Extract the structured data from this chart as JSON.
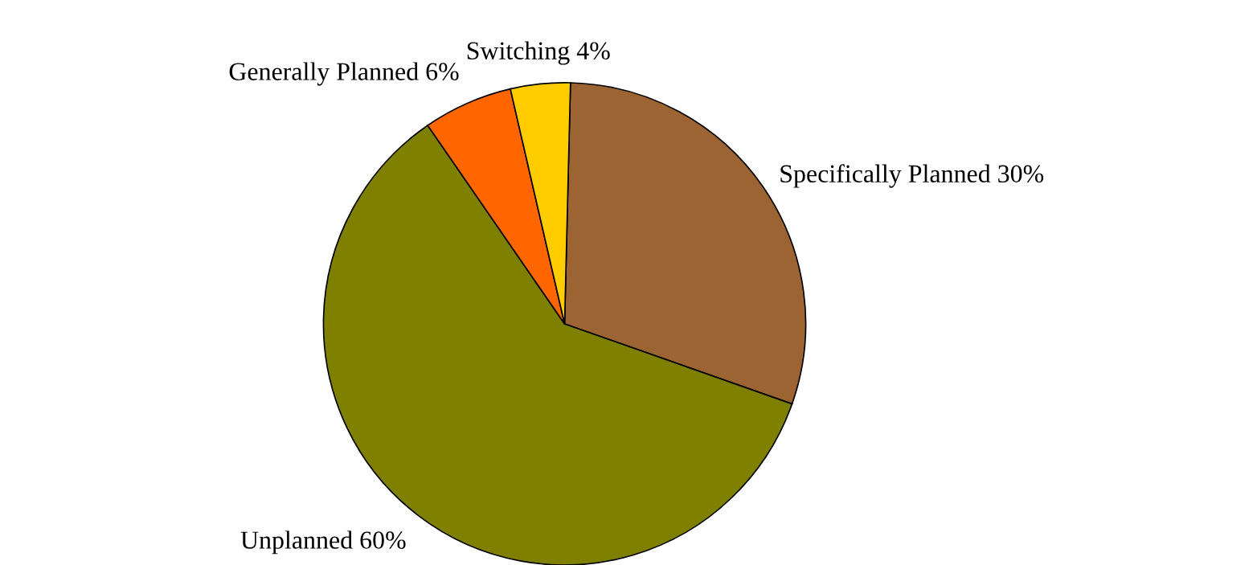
{
  "chart_data": {
    "type": "pie",
    "categories": [
      "Specifically Planned",
      "Unplanned",
      "Generally Planned",
      "Switching"
    ],
    "values": [
      30,
      60,
      6,
      4
    ],
    "value_labels": [
      "30%",
      "60%",
      "6%",
      "4%"
    ],
    "colors": [
      "#9c6433",
      "#808000",
      "#ff6600",
      "#ffcc00"
    ]
  }
}
